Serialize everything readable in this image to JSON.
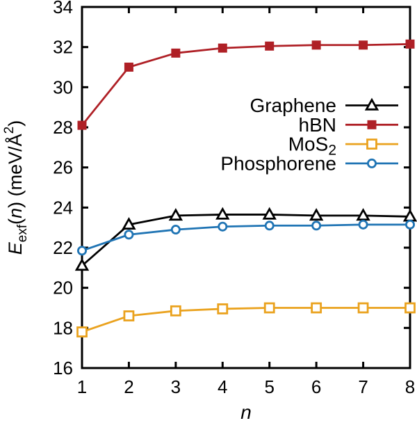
{
  "chart_data": {
    "type": "line",
    "title": "",
    "xlabel": "n",
    "xlabel_style": "italic",
    "ylabel_plain": "E_exf(n) (meV/A^2)",
    "ylabel_parts": [
      {
        "t": "E",
        "style": "italic"
      },
      {
        "t": "exf",
        "style": "sub"
      },
      {
        "t": "(",
        "style": "normal"
      },
      {
        "t": "n",
        "style": "italic"
      },
      {
        "t": ") (meV/Å",
        "style": "normal"
      },
      {
        "t": "2",
        "style": "sup"
      },
      {
        "t": ")",
        "style": "normal"
      }
    ],
    "x": [
      1,
      2,
      3,
      4,
      5,
      6,
      7,
      8
    ],
    "xlim": [
      1,
      8
    ],
    "ylim": [
      16,
      34
    ],
    "xticks": [
      1,
      2,
      3,
      4,
      5,
      6,
      7,
      8
    ],
    "yticks": [
      16,
      18,
      20,
      22,
      24,
      26,
      28,
      30,
      32,
      34
    ],
    "grid": false,
    "legend_position": "inside-right",
    "axis_color": "#000000",
    "background": "#ffffff",
    "series": [
      {
        "name": "Graphene",
        "display": {
          "base": "Graphene",
          "sub": ""
        },
        "color": "#000000",
        "marker": "triangle-open",
        "values": [
          21.1,
          23.15,
          23.6,
          23.65,
          23.65,
          23.6,
          23.6,
          23.55
        ]
      },
      {
        "name": "hBN",
        "display": {
          "base": "hBN",
          "sub": ""
        },
        "color": "#AF2026",
        "marker": "square-filled",
        "values": [
          28.1,
          31.0,
          31.7,
          31.95,
          32.05,
          32.1,
          32.1,
          32.15
        ]
      },
      {
        "name": "MoS2",
        "display": {
          "base": "MoS",
          "sub": "2"
        },
        "color": "#EAA21E",
        "marker": "square-open",
        "values": [
          17.8,
          18.6,
          18.85,
          18.95,
          19.0,
          19.0,
          19.0,
          19.0
        ]
      },
      {
        "name": "Phosphorene",
        "display": {
          "base": "Phosphorene",
          "sub": ""
        },
        "color": "#1F74B4",
        "marker": "circle-open",
        "values": [
          21.85,
          22.65,
          22.9,
          23.05,
          23.1,
          23.1,
          23.15,
          23.15
        ]
      }
    ]
  }
}
